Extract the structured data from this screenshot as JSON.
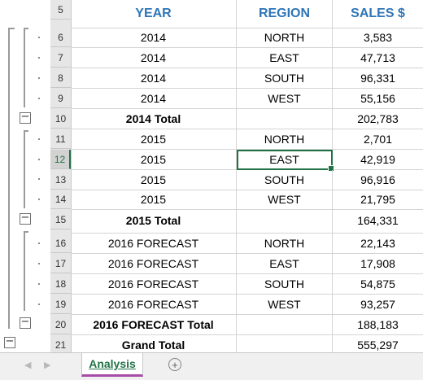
{
  "headers": {
    "year": "YEAR",
    "region": "REGION",
    "sales": "SALES $"
  },
  "rows": [
    {
      "num": "5",
      "year": "",
      "region": "",
      "sales": ""
    },
    {
      "num": "6",
      "year": "2014",
      "region": "NORTH",
      "sales": "3,583"
    },
    {
      "num": "7",
      "year": "2014",
      "region": "EAST",
      "sales": "47,713"
    },
    {
      "num": "8",
      "year": "2014",
      "region": "SOUTH",
      "sales": "96,331"
    },
    {
      "num": "9",
      "year": "2014",
      "region": "WEST",
      "sales": "55,156"
    },
    {
      "num": "10",
      "year": "2014 Total",
      "region": "",
      "sales": "202,783"
    },
    {
      "num": "11",
      "year": "2015",
      "region": "NORTH",
      "sales": "2,701"
    },
    {
      "num": "12",
      "year": "2015",
      "region": "EAST",
      "sales": "42,919"
    },
    {
      "num": "13",
      "year": "2015",
      "region": "SOUTH",
      "sales": "96,916"
    },
    {
      "num": "14",
      "year": "2015",
      "region": "WEST",
      "sales": "21,795"
    },
    {
      "num": "15",
      "year": "2015 Total",
      "region": "",
      "sales": "164,331"
    },
    {
      "num": "16",
      "year": "2016 FORECAST",
      "region": "NORTH",
      "sales": "22,143"
    },
    {
      "num": "17",
      "year": "2016 FORECAST",
      "region": "EAST",
      "sales": "17,908"
    },
    {
      "num": "18",
      "year": "2016 FORECAST",
      "region": "SOUTH",
      "sales": "54,875"
    },
    {
      "num": "19",
      "year": "2016 FORECAST",
      "region": "WEST",
      "sales": "93,257"
    },
    {
      "num": "20",
      "year": "2016 FORECAST Total",
      "region": "",
      "sales": "188,183"
    },
    {
      "num": "21",
      "year": "Grand Total",
      "region": "",
      "sales": "555,297"
    }
  ],
  "sheet_tab": "Analysis",
  "selected_row": "12",
  "colors": {
    "header_text": "#2e75b6",
    "selection": "#217346",
    "tab_underline": "#a64ca6"
  },
  "icons": {
    "add_sheet": "plus-circle-icon",
    "collapse": "minus-box-icon",
    "prev": "arrow-left-icon",
    "next": "arrow-right-icon"
  }
}
